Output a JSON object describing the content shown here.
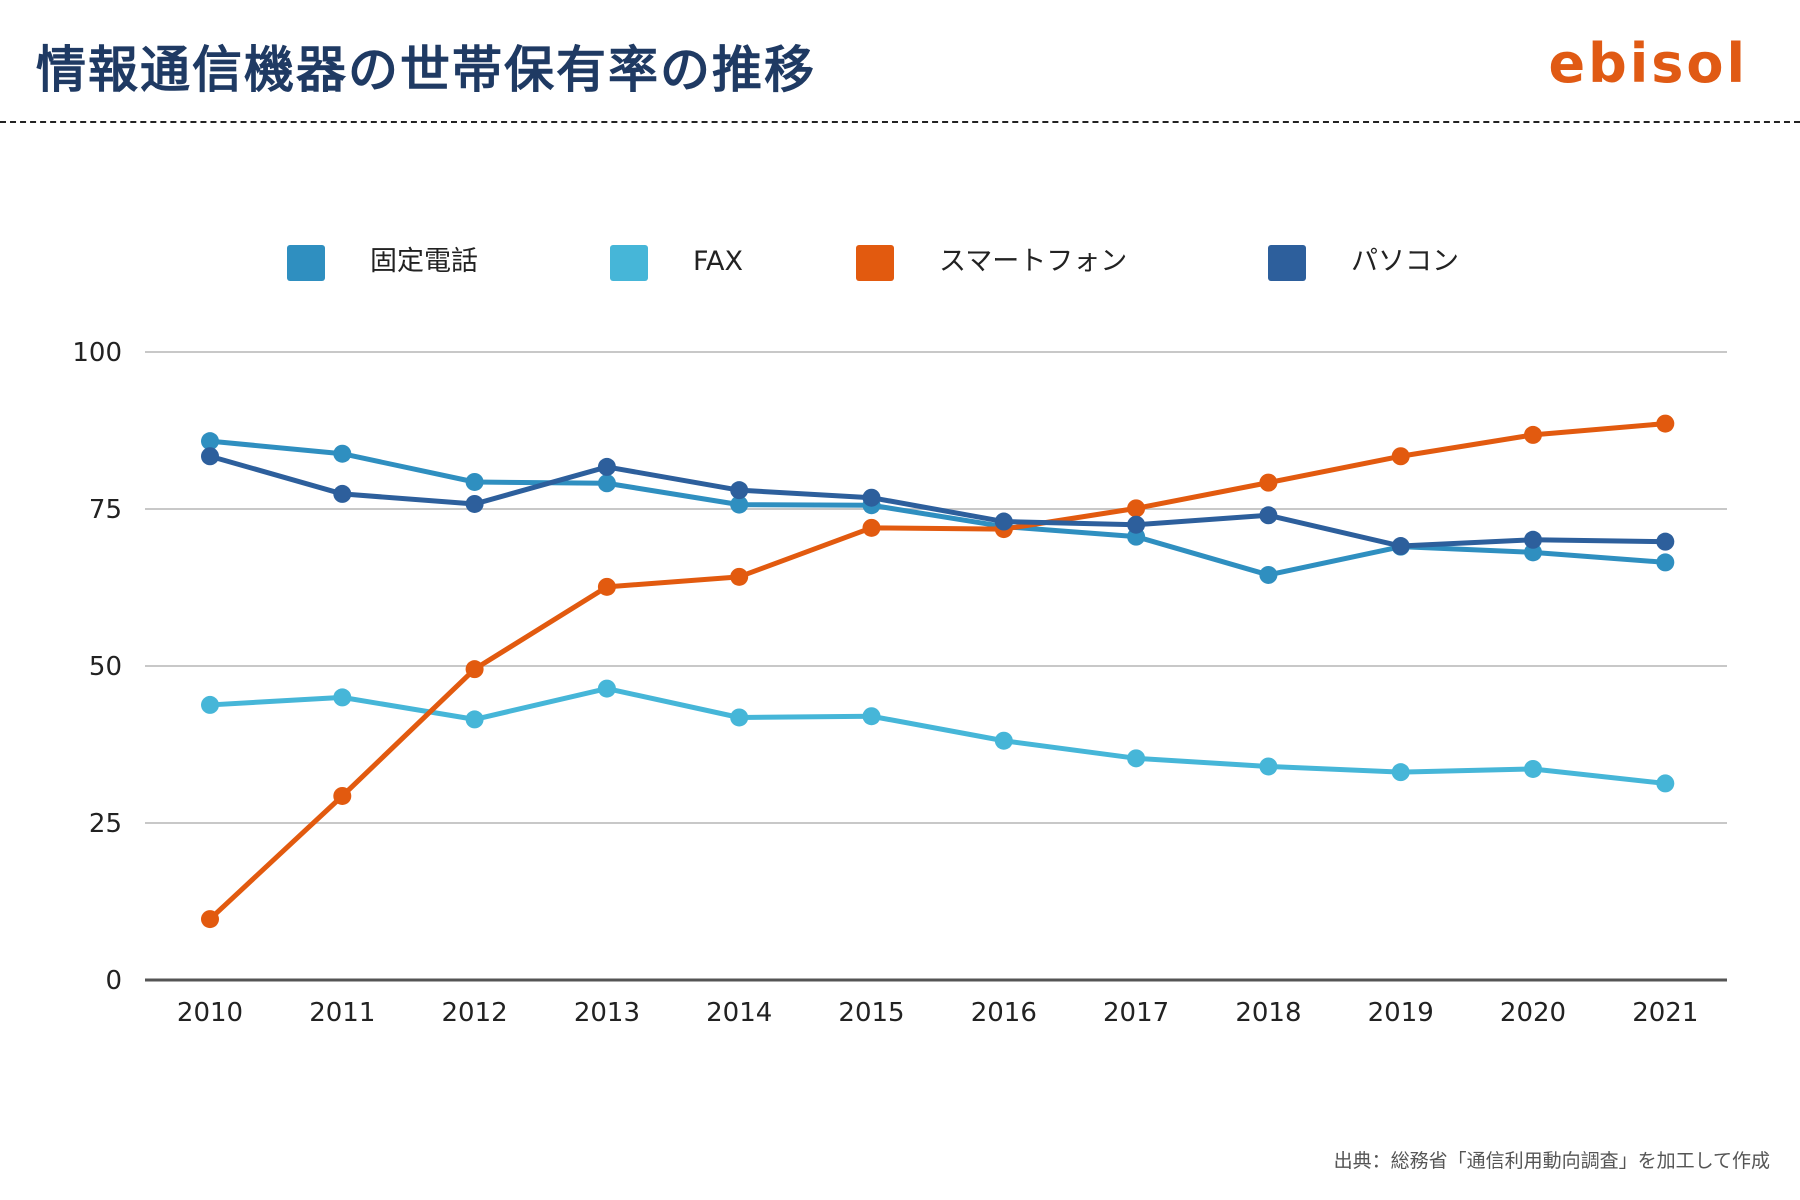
{
  "header": {
    "title": "情報通信機器の世帯保有率の推移",
    "brand": "ebisol"
  },
  "footer": {
    "source": "出典：総務省「通信利用動向調査」を加工して作成"
  },
  "colors": {
    "title": "#1f3a63",
    "brand": "#e05a14",
    "grid": "#c8c8c8",
    "axis": "#555555"
  },
  "chart_data": {
    "type": "line",
    "x": [
      "2010",
      "2011",
      "2012",
      "2013",
      "2014",
      "2015",
      "2016",
      "2017",
      "2018",
      "2019",
      "2020",
      "2021"
    ],
    "ylim": [
      0,
      100
    ],
    "yticks": [
      0,
      25,
      50,
      75,
      100
    ],
    "grid": true,
    "legend_position": "top",
    "series": [
      {
        "name": "固定電話",
        "color": "#2f8fc0",
        "values": [
          85.8,
          83.8,
          79.3,
          79.1,
          75.7,
          75.6,
          72.2,
          70.6,
          64.5,
          69.0,
          68.1,
          66.5
        ]
      },
      {
        "name": "FAX",
        "color": "#46b6d8",
        "values": [
          43.8,
          45.0,
          41.5,
          46.4,
          41.8,
          42.0,
          38.1,
          35.3,
          34.0,
          33.1,
          33.6,
          31.3
        ]
      },
      {
        "name": "スマートフォン",
        "color": "#e25a0f",
        "values": [
          9.7,
          29.3,
          49.5,
          62.6,
          64.2,
          72.0,
          71.8,
          75.1,
          79.2,
          83.4,
          86.8,
          88.6
        ]
      },
      {
        "name": "パソコン",
        "color": "#2d5f9c",
        "values": [
          83.4,
          77.4,
          75.8,
          81.7,
          78.0,
          76.8,
          73.0,
          72.5,
          74.0,
          69.1,
          70.1,
          69.8
        ]
      }
    ]
  }
}
